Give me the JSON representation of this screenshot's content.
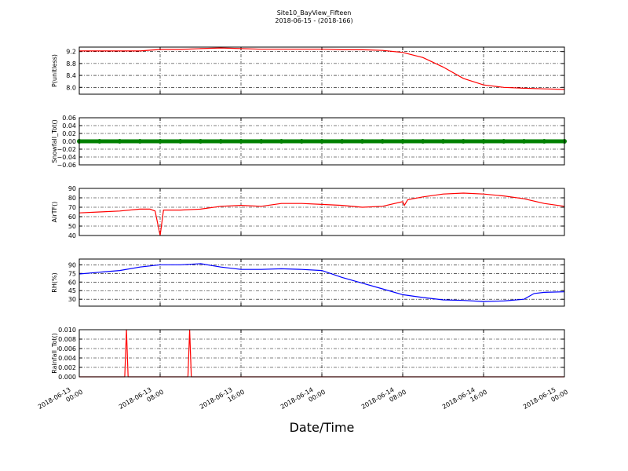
{
  "figure": {
    "title": "Site10_BayView_Fifteen",
    "subtitle": "2018-06-15 - (2018-166)",
    "xlabel": "Date/Time",
    "xlim": [
      "2018-06-13 00:00",
      "2018-06-15 00:00"
    ],
    "xticks": [
      "2018-06-13 00:00",
      "2018-06-13 08:00",
      "2018-06-13 16:00",
      "2018-06-14 00:00",
      "2018-06-14 08:00",
      "2018-06-14 16:00",
      "2018-06-15 00:00"
    ]
  },
  "chart_data": [
    {
      "type": "line",
      "ylabel": "P(unitless)",
      "color": "#ff0000",
      "ylim": [
        7.77,
        9.35
      ],
      "yticks": [
        {
          "value": 8,
          "label": "8.0"
        },
        8.4,
        8.8,
        9.2
      ],
      "grid": true,
      "x": [
        "2018-06-13 00:00",
        "2018-06-13 02:00",
        "2018-06-13 04:00",
        "2018-06-13 06:00",
        "2018-06-13 08:00",
        "2018-06-13 10:00",
        "2018-06-13 12:00",
        "2018-06-13 14:00",
        "2018-06-13 16:00",
        "2018-06-13 18:00",
        "2018-06-13 20:00",
        "2018-06-13 22:00",
        "2018-06-14 00:00",
        "2018-06-14 02:00",
        "2018-06-14 04:00",
        "2018-06-14 06:00",
        "2018-06-14 08:00",
        "2018-06-14 10:00",
        "2018-06-14 12:00",
        "2018-06-14 14:00",
        "2018-06-14 16:00",
        "2018-06-14 18:00",
        "2018-06-14 20:00",
        "2018-06-14 22:00",
        "2018-06-15 00:00"
      ],
      "values": [
        9.22,
        9.22,
        9.22,
        9.22,
        9.27,
        9.27,
        9.3,
        9.32,
        9.3,
        9.28,
        9.28,
        9.28,
        9.28,
        9.26,
        9.26,
        9.24,
        9.17,
        9.0,
        8.68,
        8.3,
        8.08,
        8.0,
        7.97,
        7.95,
        7.93
      ]
    },
    {
      "type": "scatter",
      "ylabel": "Snowfall_Tot()",
      "color": "#008000",
      "ylim": [
        -0.06,
        0.06
      ],
      "yticks": [
        {
          "value": -0.06,
          "label": "−0.06"
        },
        {
          "value": -0.04,
          "label": "−0.04"
        },
        {
          "value": -0.02,
          "label": "−0.02"
        },
        {
          "value": 0,
          "label": "0.00"
        },
        0.02,
        0.04,
        0.06
      ],
      "grid": true,
      "x": [
        "2018-06-13 00:00",
        "2018-06-13 02:00",
        "2018-06-13 04:00",
        "2018-06-13 06:00",
        "2018-06-13 08:00",
        "2018-06-13 10:00",
        "2018-06-13 12:00",
        "2018-06-13 14:00",
        "2018-06-13 16:00",
        "2018-06-13 18:00",
        "2018-06-13 20:00",
        "2018-06-13 22:00",
        "2018-06-14 00:00",
        "2018-06-14 02:00",
        "2018-06-14 04:00",
        "2018-06-14 06:00",
        "2018-06-14 08:00",
        "2018-06-14 10:00",
        "2018-06-14 12:00",
        "2018-06-14 14:00",
        "2018-06-14 16:00",
        "2018-06-14 18:00",
        "2018-06-14 20:00",
        "2018-06-14 22:00",
        "2018-06-15 00:00"
      ],
      "values": [
        0,
        0,
        0,
        0,
        0,
        0,
        0,
        0,
        0,
        0,
        0,
        0,
        0,
        0,
        0,
        0,
        0,
        0,
        0,
        0,
        0,
        0,
        0,
        0,
        0
      ]
    },
    {
      "type": "line",
      "ylabel": "AirTF()",
      "color": "#ff0000",
      "ylim": [
        40,
        90
      ],
      "yticks": [
        40,
        50,
        60,
        70,
        80,
        90
      ],
      "grid": true,
      "x": [
        "2018-06-13 00:00",
        "2018-06-13 02:00",
        "2018-06-13 04:00",
        "2018-06-13 06:00",
        "2018-06-13 07:00",
        "2018-06-13 07:30",
        "2018-06-13 08:00",
        "2018-06-13 08:20",
        "2018-06-13 10:00",
        "2018-06-13 12:00",
        "2018-06-13 14:00",
        "2018-06-13 16:00",
        "2018-06-13 18:00",
        "2018-06-13 20:00",
        "2018-06-13 22:00",
        "2018-06-14 00:00",
        "2018-06-14 02:00",
        "2018-06-14 04:00",
        "2018-06-14 06:00",
        "2018-06-14 08:00",
        "2018-06-14 08:10",
        "2018-06-14 08:30",
        "2018-06-14 10:00",
        "2018-06-14 12:00",
        "2018-06-14 14:00",
        "2018-06-14 16:00",
        "2018-06-14 18:00",
        "2018-06-14 20:00",
        "2018-06-14 22:00",
        "2018-06-15 00:00"
      ],
      "values": [
        64,
        65,
        66,
        68,
        68,
        66,
        40,
        67,
        67,
        68,
        71,
        72,
        71,
        74,
        74,
        73,
        72,
        70,
        71,
        76,
        72,
        78,
        81,
        84,
        85,
        84,
        82,
        79,
        74,
        71
      ]
    },
    {
      "type": "line",
      "ylabel": "RH(%)",
      "color": "#0000ff",
      "ylim": [
        18,
        100
      ],
      "yticks": [
        30,
        45,
        60,
        75,
        90
      ],
      "grid": true,
      "x": [
        "2018-06-13 00:00",
        "2018-06-13 02:00",
        "2018-06-13 04:00",
        "2018-06-13 06:00",
        "2018-06-13 08:00",
        "2018-06-13 10:00",
        "2018-06-13 12:00",
        "2018-06-13 14:00",
        "2018-06-13 16:00",
        "2018-06-13 18:00",
        "2018-06-13 20:00",
        "2018-06-13 22:00",
        "2018-06-14 00:00",
        "2018-06-14 02:00",
        "2018-06-14 04:00",
        "2018-06-14 06:00",
        "2018-06-14 08:00",
        "2018-06-14 10:00",
        "2018-06-14 12:00",
        "2018-06-14 14:00",
        "2018-06-14 16:00",
        "2018-06-14 18:00",
        "2018-06-14 20:00",
        "2018-06-14 21:00",
        "2018-06-14 22:00",
        "2018-06-15 00:00"
      ],
      "values": [
        74,
        77,
        80,
        86,
        90,
        90,
        92,
        86,
        82,
        82,
        83,
        82,
        80,
        68,
        58,
        48,
        38,
        33,
        29,
        28,
        26,
        27,
        30,
        40,
        42,
        43
      ]
    },
    {
      "type": "line",
      "ylabel": "Rainfall_Tot()",
      "color": "#ff0000",
      "ylim": [
        0,
        0.01
      ],
      "yticks": [
        {
          "value": 0,
          "label": "0.000"
        },
        0.002,
        0.004,
        0.006,
        0.008,
        {
          "value": 0.01,
          "label": "0.010"
        }
      ],
      "grid": true,
      "x": [
        "2018-06-13 00:00",
        "2018-06-13 04:30",
        "2018-06-13 04:40",
        "2018-06-13 04:50",
        "2018-06-13 10:45",
        "2018-06-13 10:55",
        "2018-06-13 11:05",
        "2018-06-15 00:00"
      ],
      "values": [
        0,
        0,
        0.01,
        0,
        0,
        0.01,
        0,
        0
      ]
    }
  ]
}
